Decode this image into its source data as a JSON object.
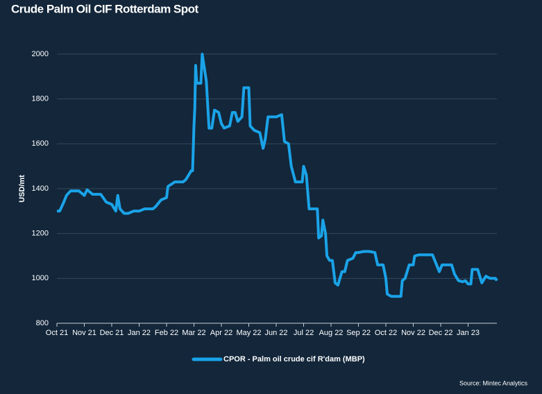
{
  "chart_data": {
    "type": "line",
    "title": "Crude Palm Oil CIF Rotterdam Spot",
    "y_label": "USD/mt",
    "source": "Source:  Mintec Analytics",
    "x": [
      0,
      0.1,
      0.25,
      0.35,
      0.5,
      0.8,
      1.0,
      1.1,
      1.3,
      1.6,
      1.8,
      2.0,
      2.15,
      2.22,
      2.3,
      2.45,
      2.6,
      2.8,
      3.0,
      3.2,
      3.5,
      3.6,
      3.8,
      4.0,
      4.05,
      4.3,
      4.6,
      4.7,
      4.9,
      4.95,
      5.0,
      5.03,
      5.06,
      5.1,
      5.25,
      5.3,
      5.45,
      5.55,
      5.65,
      5.75,
      5.9,
      6.0,
      6.1,
      6.3,
      6.4,
      6.5,
      6.6,
      6.75,
      6.82,
      7.0,
      7.05,
      7.2,
      7.4,
      7.52,
      7.6,
      7.7,
      8.0,
      8.2,
      8.3,
      8.45,
      8.55,
      8.7,
      8.95,
      9.0,
      9.1,
      9.2,
      9.5,
      9.55,
      9.65,
      9.7,
      9.8,
      9.85,
      9.95,
      10.05,
      10.15,
      10.25,
      10.4,
      10.5,
      10.6,
      10.8,
      10.9,
      11.0,
      11.2,
      11.4,
      11.6,
      11.7,
      11.9,
      12.0,
      12.05,
      12.2,
      12.55,
      12.6,
      12.7,
      12.85,
      13.0,
      13.05,
      13.2,
      13.7,
      13.85,
      13.95,
      14.05,
      14.4,
      14.5,
      14.65,
      14.8,
      14.9,
      15.0,
      15.1,
      15.15,
      15.35,
      15.4,
      15.5,
      15.6,
      15.65,
      15.8,
      16.0,
      16.05
    ],
    "series": [
      {
        "name": "CPOR - Palm oil crude cif  R'dam (MBP)",
        "color": "#1aa3e8",
        "values": [
          1300,
          1300,
          1340,
          1370,
          1390,
          1390,
          1370,
          1395,
          1375,
          1375,
          1340,
          1330,
          1300,
          1370,
          1310,
          1290,
          1290,
          1300,
          1300,
          1310,
          1310,
          1320,
          1350,
          1360,
          1410,
          1430,
          1430,
          1440,
          1480,
          1480,
          1680,
          1760,
          1950,
          1870,
          1870,
          2000,
          1880,
          1670,
          1670,
          1750,
          1740,
          1690,
          1670,
          1680,
          1740,
          1740,
          1700,
          1720,
          1850,
          1850,
          1680,
          1660,
          1650,
          1580,
          1620,
          1720,
          1720,
          1730,
          1610,
          1600,
          1500,
          1430,
          1430,
          1500,
          1460,
          1310,
          1310,
          1180,
          1190,
          1260,
          1200,
          1100,
          1080,
          1080,
          980,
          970,
          1030,
          1030,
          1080,
          1090,
          1115,
          1115,
          1120,
          1120,
          1115,
          1060,
          1060,
          1000,
          930,
          920,
          920,
          990,
          1000,
          1060,
          1060,
          1100,
          1105,
          1105,
          1060,
          1030,
          1060,
          1060,
          1020,
          990,
          985,
          990,
          975,
          975,
          1040,
          1040,
          1020,
          980,
          1000,
          1010,
          1000,
          1000,
          990
        ]
      }
    ],
    "xlim": [
      0,
      16.05
    ],
    "xticks": [
      {
        "value": 0,
        "label": "Oct 21"
      },
      {
        "value": 1,
        "label": "Nov 21"
      },
      {
        "value": 2,
        "label": "Dec 21"
      },
      {
        "value": 3,
        "label": "Jan 22"
      },
      {
        "value": 4,
        "label": "Feb 22"
      },
      {
        "value": 5,
        "label": "Mar 22"
      },
      {
        "value": 6,
        "label": "Apr 22"
      },
      {
        "value": 7,
        "label": "May 22"
      },
      {
        "value": 8,
        "label": "Jun 22"
      },
      {
        "value": 9,
        "label": "Jul 22"
      },
      {
        "value": 10,
        "label": "Aug 22"
      },
      {
        "value": 11,
        "label": "Sep 22"
      },
      {
        "value": 12,
        "label": "Oct 22"
      },
      {
        "value": 13,
        "label": "Nov 22"
      },
      {
        "value": 14,
        "label": "Dec 22"
      },
      {
        "value": 15,
        "label": "Jan 23"
      }
    ],
    "ylim": [
      800,
      2000
    ],
    "yticks": [
      800,
      1000,
      1200,
      1400,
      1600,
      1800,
      2000
    ],
    "grid": true
  }
}
